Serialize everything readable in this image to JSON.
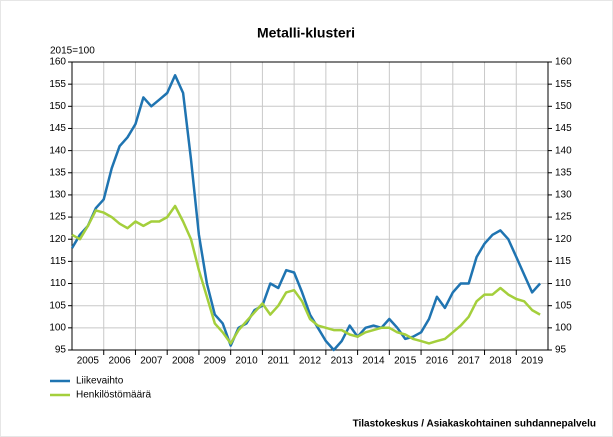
{
  "chart_data": {
    "type": "line",
    "title": "Metalli-klusteri",
    "y_label": "2015=100",
    "source": "Tilastokeskus / Asiakaskohtainen suhdannepalvelu",
    "x": [
      2005,
      2005.25,
      2005.5,
      2005.75,
      2006,
      2006.25,
      2006.5,
      2006.75,
      2007,
      2007.25,
      2007.5,
      2007.75,
      2008,
      2008.25,
      2008.5,
      2008.75,
      2009,
      2009.25,
      2009.5,
      2009.75,
      2010,
      2010.25,
      2010.5,
      2010.75,
      2011,
      2011.25,
      2011.5,
      2011.75,
      2012,
      2012.25,
      2012.5,
      2012.75,
      2013,
      2013.25,
      2013.5,
      2013.75,
      2014,
      2014.25,
      2014.5,
      2014.75,
      2015,
      2015.25,
      2015.5,
      2015.75,
      2016,
      2016.25,
      2016.5,
      2016.75,
      2017,
      2017.25,
      2017.5,
      2017.75,
      2018,
      2018.25,
      2018.5,
      2018.75,
      2019,
      2019.25,
      2019.5,
      2019.75
    ],
    "series": [
      {
        "name": "Liikevaihto",
        "color": "#1f74b1",
        "values": [
          118,
          121,
          123,
          127,
          129,
          136,
          141,
          143,
          146,
          152,
          150,
          151.5,
          153,
          157,
          153,
          138,
          121,
          110,
          103,
          101,
          96,
          100,
          101,
          104,
          105,
          110,
          109,
          113,
          112.5,
          108,
          103,
          100,
          97,
          95,
          97,
          100.5,
          98,
          100,
          100.5,
          100,
          102,
          100,
          97.5,
          98,
          99,
          102,
          107,
          104.5,
          108,
          110,
          110,
          116,
          119,
          121,
          122,
          120,
          116,
          112,
          108,
          110
        ]
      },
      {
        "name": "Henkilöstömäärä",
        "color": "#a4cf3c",
        "values": [
          121,
          120,
          123,
          126.5,
          126,
          125,
          123.5,
          122.5,
          124,
          123,
          124,
          124,
          125,
          127.5,
          124,
          120,
          113,
          107,
          101,
          99,
          96.5,
          99.5,
          101.5,
          103.5,
          105.5,
          103,
          105,
          108,
          108.5,
          106,
          102,
          100.5,
          100,
          99.5,
          99.5,
          98.5,
          98,
          99,
          99.5,
          100,
          100,
          99,
          98.5,
          97.5,
          97,
          96.5,
          97,
          97.5,
          99,
          100.5,
          102.5,
          106,
          107.5,
          107.5,
          109,
          107.5,
          106.5,
          106,
          104,
          103
        ]
      }
    ],
    "xlim": [
      2005,
      2020
    ],
    "xticks": [
      {
        "value": 2005.5,
        "label": "2005"
      },
      {
        "value": 2006.5,
        "label": "2006"
      },
      {
        "value": 2007.5,
        "label": "2007"
      },
      {
        "value": 2008.5,
        "label": "2008"
      },
      {
        "value": 2009.5,
        "label": "2009"
      },
      {
        "value": 2010.5,
        "label": "2010"
      },
      {
        "value": 2011.5,
        "label": "2011"
      },
      {
        "value": 2012.5,
        "label": "2012"
      },
      {
        "value": 2013.5,
        "label": "2013"
      },
      {
        "value": 2014.5,
        "label": "2014"
      },
      {
        "value": 2015.5,
        "label": "2015"
      },
      {
        "value": 2016.5,
        "label": "2016"
      },
      {
        "value": 2017.5,
        "label": "2017"
      },
      {
        "value": 2018.5,
        "label": "2018"
      },
      {
        "value": 2019.5,
        "label": "2019"
      }
    ],
    "ylim": [
      95,
      160
    ],
    "yticks": [
      95,
      100,
      105,
      110,
      115,
      120,
      125,
      130,
      135,
      140,
      145,
      150,
      155,
      160
    ],
    "y2lim": [
      95,
      160
    ],
    "y2ticks": [
      95,
      100,
      105,
      110,
      115,
      120,
      125,
      130,
      135,
      140,
      145,
      150,
      155,
      160
    ],
    "grid": true,
    "legend": "bottom-left"
  }
}
